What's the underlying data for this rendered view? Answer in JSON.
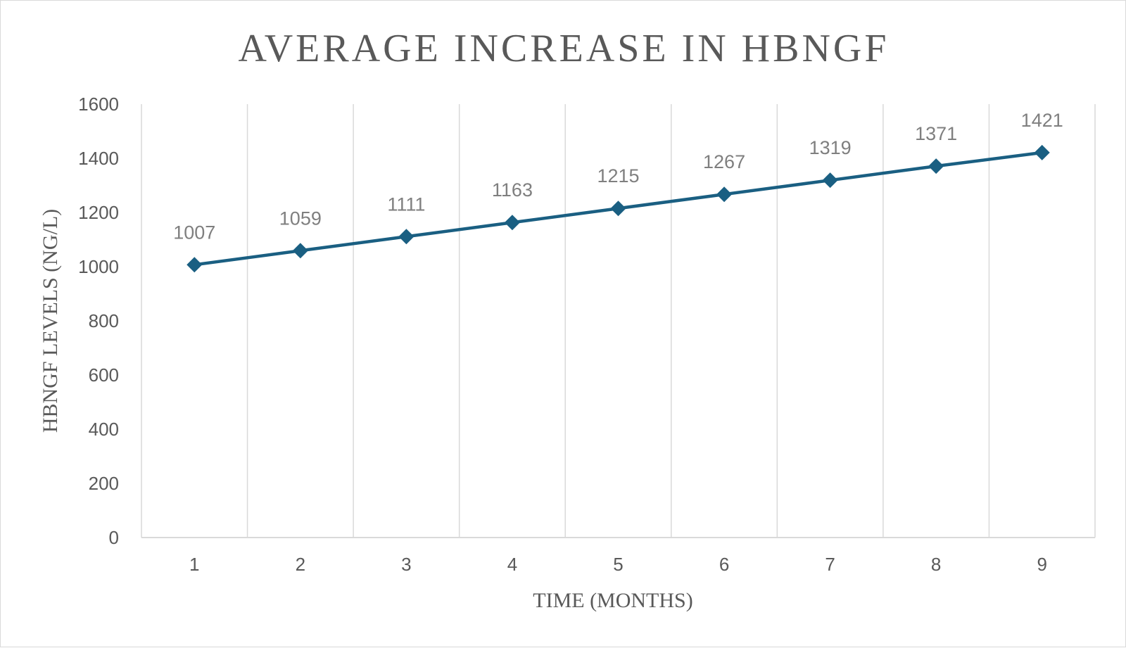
{
  "chart_data": {
    "type": "line",
    "title": "AVERAGE INCREASE IN HBNGF",
    "xlabel": "TIME (MONTHS)",
    "ylabel": "HBNGF LEVELS (NG/L)",
    "x": [
      1,
      2,
      3,
      4,
      5,
      6,
      7,
      8,
      9
    ],
    "series": [
      {
        "values": [
          1007,
          1059,
          1111,
          1163,
          1215,
          1267,
          1319,
          1371,
          1421
        ],
        "color": "#1a5f82",
        "marker": "diamond"
      }
    ],
    "ylim": [
      0,
      1600
    ],
    "yticks": [
      0,
      200,
      400,
      600,
      800,
      1000,
      1200,
      1400,
      1600
    ],
    "grid": "vertical",
    "data_labels": true,
    "legend": "none"
  }
}
